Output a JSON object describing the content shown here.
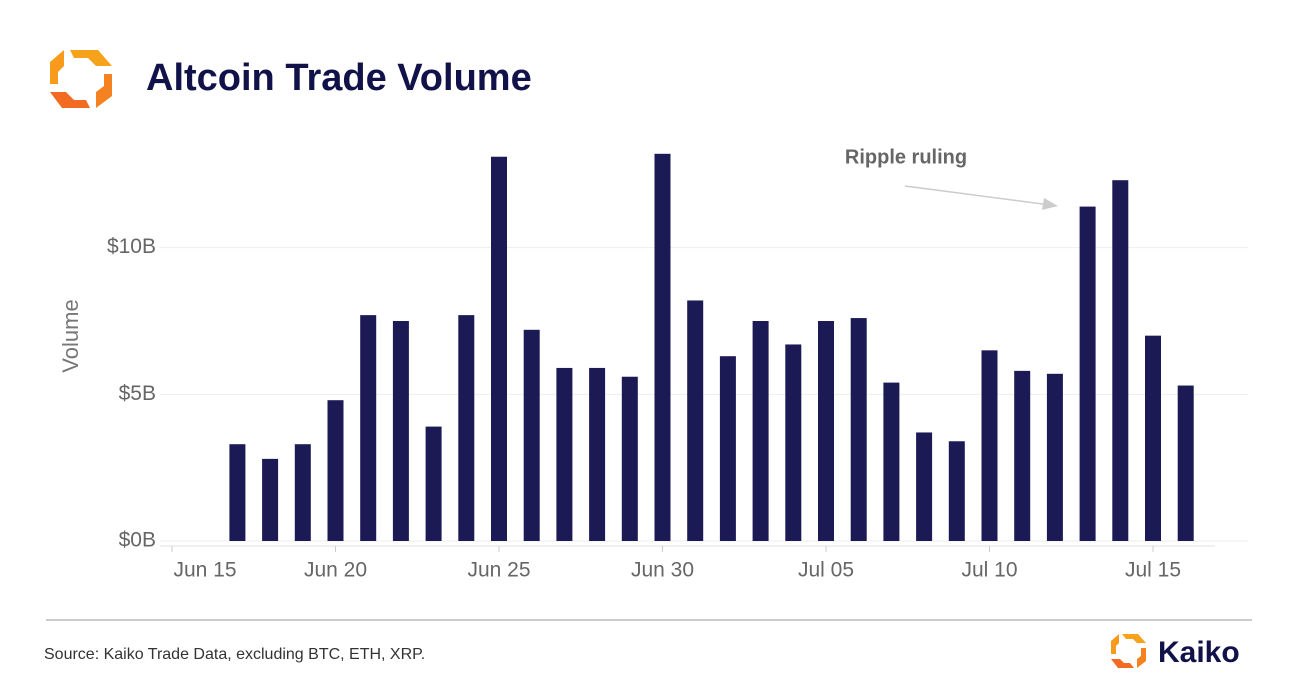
{
  "chart_data": {
    "type": "bar",
    "title": "Altcoin Trade Volume",
    "y_label": "Volume",
    "annotation": "Ripple ruling",
    "source": "Source: Kaiko Trade Data, excluding BTC, ETH, XRP.",
    "brand": "Kaiko",
    "categories": [
      "Jun 15",
      null,
      null,
      null,
      null,
      "Jun 20",
      null,
      null,
      null,
      null,
      "Jun 25",
      null,
      null,
      null,
      null,
      "Jun 30",
      null,
      null,
      null,
      null,
      "Jul 05",
      null,
      null,
      null,
      null,
      "Jul 10",
      null,
      null,
      null,
      null,
      "Jul 15",
      null,
      null
    ],
    "values": [
      null,
      null,
      3.3,
      2.8,
      3.3,
      4.8,
      7.7,
      7.5,
      3.9,
      7.7,
      13.1,
      7.2,
      5.9,
      5.9,
      5.6,
      13.2,
      8.2,
      6.3,
      7.5,
      6.7,
      7.5,
      7.6,
      5.4,
      3.7,
      3.4,
      6.5,
      5.8,
      5.7,
      11.4,
      12.3,
      7.0,
      5.3,
      null
    ],
    "color": "#1b1a55",
    "ylim": [
      0,
      13.5
    ],
    "yticks": [
      {
        "value": 0,
        "label": "$0B"
      },
      {
        "value": 5,
        "label": "$5B"
      },
      {
        "value": 10,
        "label": "$10B"
      }
    ],
    "grid": true
  }
}
